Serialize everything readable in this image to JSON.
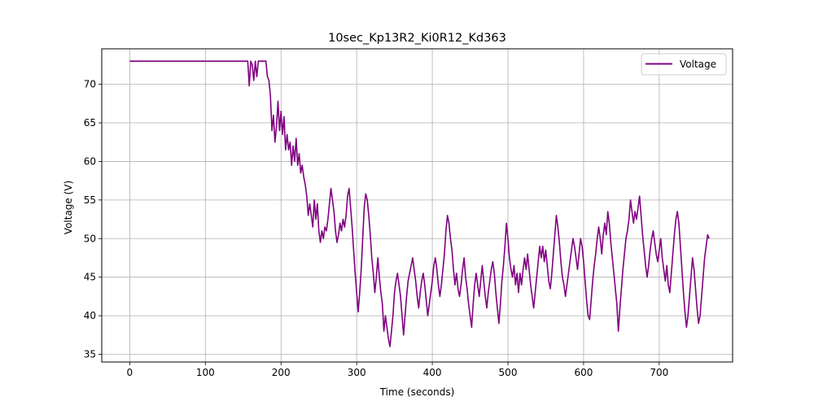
{
  "chart_data": {
    "type": "line",
    "title": "10sec_Kp13R2_Ki0R12_Kd363",
    "xlabel": "Time (seconds)",
    "ylabel": "Voltage (V)",
    "xlim": [
      -37,
      797
    ],
    "ylim": [
      34,
      74.6
    ],
    "xticks": [
      0,
      100,
      200,
      300,
      400,
      500,
      600,
      700
    ],
    "yticks": [
      35,
      40,
      45,
      50,
      55,
      60,
      65,
      70
    ],
    "grid": true,
    "legend_position": "top-right",
    "series": [
      {
        "name": "Voltage",
        "color": "#800080",
        "points": [
          [
            0,
            73
          ],
          [
            50,
            73
          ],
          [
            100,
            73
          ],
          [
            150,
            73
          ],
          [
            156,
            73
          ],
          [
            158,
            69.8
          ],
          [
            160,
            73
          ],
          [
            162,
            72.5
          ],
          [
            164,
            70.5
          ],
          [
            166,
            73
          ],
          [
            168,
            71
          ],
          [
            170,
            73
          ],
          [
            175,
            73
          ],
          [
            180,
            73
          ],
          [
            182,
            71
          ],
          [
            184,
            70.5
          ],
          [
            186,
            68.5
          ],
          [
            188,
            64
          ],
          [
            190,
            66
          ],
          [
            192,
            62.5
          ],
          [
            194,
            64.5
          ],
          [
            196,
            67.8
          ],
          [
            198,
            64
          ],
          [
            200,
            66.5
          ],
          [
            202,
            63.5
          ],
          [
            204,
            65.8
          ],
          [
            206,
            61.5
          ],
          [
            208,
            63.5
          ],
          [
            210,
            61.5
          ],
          [
            212,
            62.5
          ],
          [
            214,
            59.5
          ],
          [
            216,
            62
          ],
          [
            218,
            60
          ],
          [
            220,
            63
          ],
          [
            222,
            59.5
          ],
          [
            224,
            61
          ],
          [
            226,
            58.5
          ],
          [
            228,
            59.5
          ],
          [
            230,
            58
          ],
          [
            232,
            57
          ],
          [
            234,
            55.5
          ],
          [
            236,
            53
          ],
          [
            238,
            54.5
          ],
          [
            240,
            53
          ],
          [
            242,
            51.5
          ],
          [
            244,
            55
          ],
          [
            246,
            52.5
          ],
          [
            248,
            54.5
          ],
          [
            250,
            51
          ],
          [
            252,
            49.5
          ],
          [
            254,
            51
          ],
          [
            256,
            50
          ],
          [
            258,
            51.5
          ],
          [
            260,
            51
          ],
          [
            262,
            52.5
          ],
          [
            264,
            54.5
          ],
          [
            266,
            56.5
          ],
          [
            268,
            55
          ],
          [
            270,
            53.5
          ],
          [
            272,
            51
          ],
          [
            274,
            49.5
          ],
          [
            276,
            50.5
          ],
          [
            278,
            52
          ],
          [
            280,
            51
          ],
          [
            282,
            52.5
          ],
          [
            284,
            51.5
          ],
          [
            286,
            53
          ],
          [
            288,
            55.5
          ],
          [
            290,
            56.5
          ],
          [
            292,
            54
          ],
          [
            294,
            51.5
          ],
          [
            296,
            48.5
          ],
          [
            298,
            45.5
          ],
          [
            300,
            43
          ],
          [
            302,
            40.5
          ],
          [
            304,
            43
          ],
          [
            306,
            46
          ],
          [
            308,
            50
          ],
          [
            310,
            54
          ],
          [
            312,
            55.8
          ],
          [
            314,
            55
          ],
          [
            316,
            53
          ],
          [
            318,
            50.5
          ],
          [
            320,
            47.5
          ],
          [
            322,
            45.5
          ],
          [
            324,
            43
          ],
          [
            326,
            45
          ],
          [
            328,
            47.5
          ],
          [
            330,
            45
          ],
          [
            332,
            43
          ],
          [
            334,
            41.5
          ],
          [
            336,
            38
          ],
          [
            338,
            40
          ],
          [
            340,
            38.5
          ],
          [
            342,
            37
          ],
          [
            344,
            36
          ],
          [
            346,
            38
          ],
          [
            348,
            40
          ],
          [
            350,
            43
          ],
          [
            352,
            44.5
          ],
          [
            354,
            45.5
          ],
          [
            356,
            44
          ],
          [
            358,
            42.5
          ],
          [
            360,
            40
          ],
          [
            362,
            37.5
          ],
          [
            364,
            40
          ],
          [
            366,
            42.5
          ],
          [
            368,
            44.5
          ],
          [
            370,
            45.5
          ],
          [
            372,
            46.5
          ],
          [
            374,
            47.5
          ],
          [
            376,
            46
          ],
          [
            378,
            44.5
          ],
          [
            380,
            42.5
          ],
          [
            382,
            41
          ],
          [
            384,
            43
          ],
          [
            386,
            44.5
          ],
          [
            388,
            45.5
          ],
          [
            390,
            44
          ],
          [
            392,
            42
          ],
          [
            394,
            40
          ],
          [
            396,
            41.5
          ],
          [
            398,
            43
          ],
          [
            400,
            44.5
          ],
          [
            402,
            46.5
          ],
          [
            404,
            47.5
          ],
          [
            406,
            46
          ],
          [
            408,
            44
          ],
          [
            410,
            42.5
          ],
          [
            412,
            44
          ],
          [
            414,
            46
          ],
          [
            416,
            48
          ],
          [
            418,
            51
          ],
          [
            420,
            53
          ],
          [
            422,
            52
          ],
          [
            424,
            50
          ],
          [
            426,
            48.5
          ],
          [
            428,
            46
          ],
          [
            430,
            44
          ],
          [
            432,
            45.5
          ],
          [
            434,
            43.5
          ],
          [
            436,
            42.5
          ],
          [
            438,
            44
          ],
          [
            440,
            46
          ],
          [
            442,
            47.5
          ],
          [
            444,
            45
          ],
          [
            446,
            43.5
          ],
          [
            448,
            41.5
          ],
          [
            450,
            40
          ],
          [
            452,
            38.5
          ],
          [
            454,
            41.5
          ],
          [
            456,
            44
          ],
          [
            458,
            45.5
          ],
          [
            460,
            44
          ],
          [
            462,
            42.5
          ],
          [
            464,
            44.5
          ],
          [
            466,
            46.5
          ],
          [
            468,
            44.5
          ],
          [
            470,
            42.5
          ],
          [
            472,
            41
          ],
          [
            474,
            43
          ],
          [
            476,
            44.5
          ],
          [
            478,
            46
          ],
          [
            480,
            47
          ],
          [
            482,
            45.5
          ],
          [
            484,
            43
          ],
          [
            486,
            41
          ],
          [
            488,
            39
          ],
          [
            490,
            41.5
          ],
          [
            492,
            44.5
          ],
          [
            494,
            46.5
          ],
          [
            496,
            49
          ],
          [
            498,
            52
          ],
          [
            500,
            50
          ],
          [
            502,
            47.5
          ],
          [
            504,
            46
          ],
          [
            506,
            45
          ],
          [
            508,
            46.5
          ],
          [
            510,
            44
          ],
          [
            512,
            45.5
          ],
          [
            514,
            43
          ],
          [
            516,
            45.5
          ],
          [
            518,
            44
          ],
          [
            520,
            46
          ],
          [
            522,
            47.5
          ],
          [
            524,
            46
          ],
          [
            526,
            48
          ],
          [
            528,
            46
          ],
          [
            530,
            44
          ],
          [
            532,
            42.5
          ],
          [
            534,
            41
          ],
          [
            536,
            43
          ],
          [
            538,
            45
          ],
          [
            540,
            47
          ],
          [
            542,
            49
          ],
          [
            544,
            47.5
          ],
          [
            546,
            49
          ],
          [
            548,
            47
          ],
          [
            550,
            48.5
          ],
          [
            552,
            46.5
          ],
          [
            554,
            44.5
          ],
          [
            556,
            43.5
          ],
          [
            558,
            45.5
          ],
          [
            560,
            48
          ],
          [
            562,
            50.5
          ],
          [
            564,
            53
          ],
          [
            566,
            51.5
          ],
          [
            568,
            49.5
          ],
          [
            570,
            47
          ],
          [
            572,
            45
          ],
          [
            574,
            44
          ],
          [
            576,
            42.5
          ],
          [
            578,
            44
          ],
          [
            580,
            45.5
          ],
          [
            582,
            47
          ],
          [
            584,
            48.5
          ],
          [
            586,
            50
          ],
          [
            588,
            49
          ],
          [
            590,
            47.5
          ],
          [
            592,
            46
          ],
          [
            594,
            48
          ],
          [
            596,
            50
          ],
          [
            598,
            49
          ],
          [
            600,
            47
          ],
          [
            602,
            44.5
          ],
          [
            604,
            42
          ],
          [
            606,
            40
          ],
          [
            608,
            39.5
          ],
          [
            610,
            42
          ],
          [
            612,
            44.5
          ],
          [
            614,
            46.5
          ],
          [
            616,
            48
          ],
          [
            618,
            50
          ],
          [
            620,
            51.5
          ],
          [
            622,
            50
          ],
          [
            624,
            48
          ],
          [
            626,
            50.5
          ],
          [
            628,
            52
          ],
          [
            630,
            50.5
          ],
          [
            632,
            53.5
          ],
          [
            634,
            52
          ],
          [
            636,
            49.5
          ],
          [
            638,
            47.5
          ],
          [
            640,
            45.5
          ],
          [
            642,
            43.5
          ],
          [
            644,
            41.5
          ],
          [
            646,
            38
          ],
          [
            648,
            41
          ],
          [
            650,
            43.5
          ],
          [
            652,
            46
          ],
          [
            654,
            48
          ],
          [
            656,
            50
          ],
          [
            658,
            51
          ],
          [
            660,
            52.5
          ],
          [
            662,
            55
          ],
          [
            664,
            53.5
          ],
          [
            666,
            52
          ],
          [
            668,
            53.5
          ],
          [
            670,
            52.5
          ],
          [
            672,
            54
          ],
          [
            674,
            55.5
          ],
          [
            676,
            53
          ],
          [
            678,
            50.5
          ],
          [
            680,
            48.5
          ],
          [
            682,
            46.5
          ],
          [
            684,
            45
          ],
          [
            686,
            46.5
          ],
          [
            688,
            48.5
          ],
          [
            690,
            50
          ],
          [
            692,
            51
          ],
          [
            694,
            49.5
          ],
          [
            696,
            48
          ],
          [
            698,
            47
          ],
          [
            700,
            48.5
          ],
          [
            702,
            50
          ],
          [
            704,
            47.5
          ],
          [
            706,
            46
          ],
          [
            708,
            44.5
          ],
          [
            710,
            46.5
          ],
          [
            712,
            44
          ],
          [
            714,
            43
          ],
          [
            716,
            45.5
          ],
          [
            718,
            48
          ],
          [
            720,
            50.5
          ],
          [
            722,
            52.5
          ],
          [
            724,
            53.5
          ],
          [
            726,
            52
          ],
          [
            728,
            49
          ],
          [
            730,
            46
          ],
          [
            732,
            43
          ],
          [
            734,
            40.5
          ],
          [
            736,
            38.5
          ],
          [
            738,
            40
          ],
          [
            740,
            42.5
          ],
          [
            742,
            45
          ],
          [
            744,
            47.5
          ],
          [
            746,
            46
          ],
          [
            748,
            43.5
          ],
          [
            750,
            41
          ],
          [
            752,
            39
          ],
          [
            754,
            40
          ],
          [
            756,
            42.5
          ],
          [
            758,
            45
          ],
          [
            760,
            47.5
          ],
          [
            762,
            49
          ],
          [
            764,
            50.5
          ],
          [
            766,
            50
          ]
        ]
      }
    ]
  }
}
